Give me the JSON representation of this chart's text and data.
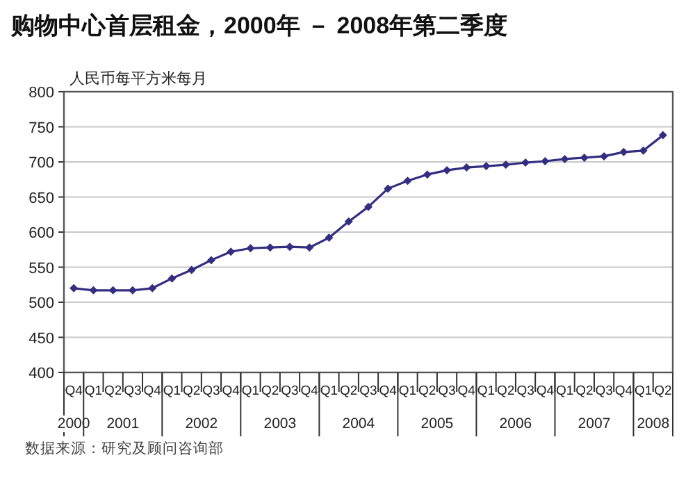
{
  "chart_data": {
    "type": "line",
    "title": "购物中心首层租金，2000年 － 2008年第二季度",
    "ylabel": "人民币每平方米每月",
    "categories": [
      "Q4",
      "Q1",
      "Q2",
      "Q3",
      "Q4",
      "Q1",
      "Q2",
      "Q3",
      "Q4",
      "Q1",
      "Q2",
      "Q3",
      "Q4",
      "Q1",
      "Q2",
      "Q3",
      "Q4",
      "Q1",
      "Q2",
      "Q3",
      "Q4",
      "Q1",
      "Q2",
      "Q3",
      "Q4",
      "Q1",
      "Q2",
      "Q3",
      "Q4",
      "Q1",
      "Q2"
    ],
    "series": [
      {
        "color": "#332e80",
        "values": [
          520,
          517,
          517,
          517,
          520,
          534,
          546,
          560,
          572,
          577,
          578,
          579,
          578,
          592,
          615,
          636,
          662,
          673,
          682,
          688,
          692,
          694,
          696,
          699,
          701,
          704,
          706,
          708,
          714,
          716,
          738
        ]
      }
    ],
    "ylim": [
      400,
      800
    ],
    "yticks": [
      400,
      450,
      500,
      550,
      600,
      650,
      700,
      750,
      800
    ],
    "grid": "y",
    "marker": "diamond",
    "annotations": [
      "2000",
      "2001",
      "2002",
      "2003",
      "2004",
      "2005",
      "2006",
      "2007",
      "2008",
      "数据来源：研究及顾问咨询部"
    ]
  }
}
